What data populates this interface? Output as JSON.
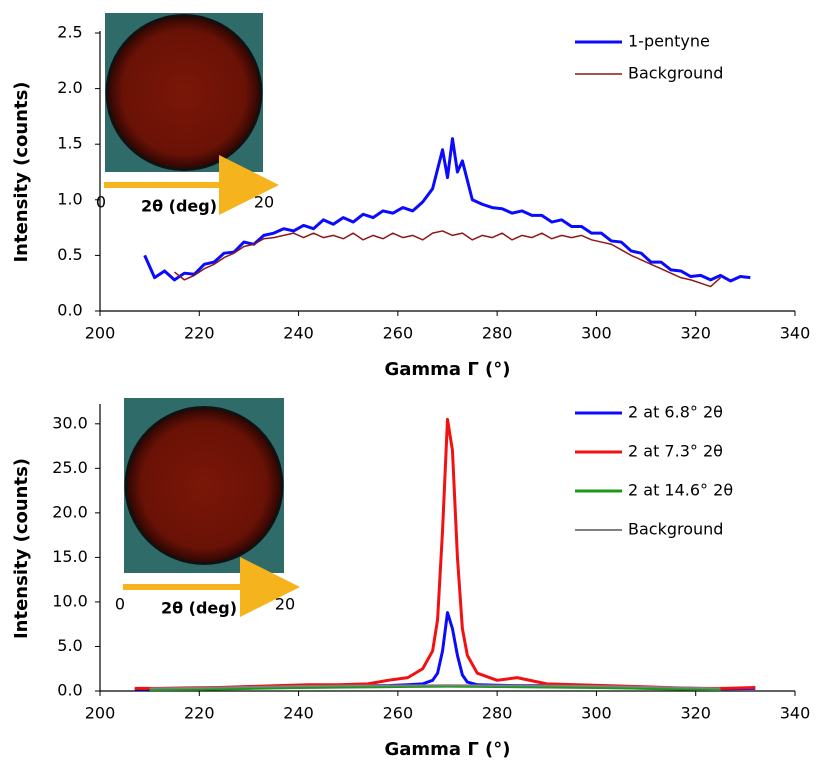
{
  "chart_data": [
    {
      "type": "line",
      "x_label": "Gamma Γ (°)",
      "y_label": "Intensity (counts)",
      "xlim": [
        200,
        340
      ],
      "xticks": [
        200,
        220,
        240,
        260,
        280,
        300,
        320,
        340
      ],
      "ylim": [
        0,
        2.5
      ],
      "yticks": [
        {
          "value": 0,
          "label": "0.0"
        },
        {
          "value": 0.5,
          "label": "0.5"
        },
        {
          "value": 1,
          "label": "1.0"
        },
        {
          "value": 1.5,
          "label": "1.5"
        },
        {
          "value": 2,
          "label": "2.0"
        },
        {
          "value": 2.5,
          "label": "2.5"
        }
      ],
      "legend": "upper right",
      "inset": {
        "start": "0",
        "label": "2θ (deg)",
        "end": "20"
      },
      "series": [
        {
          "name": "1-pentyne",
          "color": "#0a0aff",
          "width": 3,
          "x": [
            209,
            211,
            213,
            215,
            217,
            219,
            221,
            223,
            225,
            227,
            229,
            231,
            233,
            235,
            237,
            239,
            241,
            243,
            245,
            247,
            249,
            251,
            253,
            255,
            257,
            259,
            261,
            263,
            265,
            267,
            269,
            270,
            271,
            272,
            273,
            275,
            277,
            279,
            281,
            283,
            285,
            287,
            289,
            291,
            293,
            295,
            297,
            299,
            301,
            303,
            305,
            307,
            309,
            311,
            313,
            315,
            317,
            319,
            321,
            323,
            325,
            327,
            329,
            331
          ],
          "values": [
            0.5,
            0.3,
            0.36,
            0.28,
            0.34,
            0.33,
            0.42,
            0.44,
            0.52,
            0.53,
            0.62,
            0.6,
            0.68,
            0.7,
            0.74,
            0.72,
            0.77,
            0.74,
            0.82,
            0.78,
            0.84,
            0.8,
            0.87,
            0.84,
            0.9,
            0.88,
            0.93,
            0.9,
            0.98,
            1.1,
            1.45,
            1.2,
            1.55,
            1.25,
            1.35,
            1.0,
            0.96,
            0.93,
            0.92,
            0.88,
            0.9,
            0.86,
            0.86,
            0.8,
            0.82,
            0.76,
            0.76,
            0.7,
            0.7,
            0.63,
            0.62,
            0.54,
            0.52,
            0.44,
            0.44,
            0.37,
            0.36,
            0.31,
            0.32,
            0.28,
            0.32,
            0.27,
            0.31,
            0.3
          ]
        },
        {
          "name": "Background",
          "color": "#8b1a1a",
          "width": 1.5,
          "x": [
            215,
            217,
            219,
            221,
            223,
            225,
            227,
            229,
            231,
            233,
            235,
            237,
            239,
            241,
            243,
            245,
            247,
            249,
            251,
            253,
            255,
            257,
            259,
            261,
            263,
            265,
            267,
            269,
            271,
            273,
            275,
            277,
            279,
            281,
            283,
            285,
            287,
            289,
            291,
            293,
            295,
            297,
            299,
            301,
            303,
            305,
            307,
            309,
            311,
            313,
            315,
            317,
            319,
            321,
            323,
            325
          ],
          "values": [
            0.35,
            0.28,
            0.32,
            0.38,
            0.42,
            0.48,
            0.52,
            0.58,
            0.6,
            0.65,
            0.66,
            0.68,
            0.7,
            0.66,
            0.7,
            0.66,
            0.68,
            0.65,
            0.7,
            0.64,
            0.68,
            0.65,
            0.7,
            0.66,
            0.68,
            0.64,
            0.7,
            0.72,
            0.68,
            0.7,
            0.64,
            0.68,
            0.66,
            0.7,
            0.64,
            0.68,
            0.66,
            0.7,
            0.65,
            0.68,
            0.66,
            0.68,
            0.64,
            0.62,
            0.6,
            0.55,
            0.5,
            0.46,
            0.42,
            0.38,
            0.34,
            0.3,
            0.28,
            0.25,
            0.22,
            0.3
          ]
        }
      ]
    },
    {
      "type": "line",
      "x_label": "Gamma Γ (°)",
      "y_label": "Intensity (counts)",
      "xlim": [
        200,
        340
      ],
      "xticks": [
        200,
        220,
        240,
        260,
        280,
        300,
        320,
        340
      ],
      "ylim": [
        0,
        32
      ],
      "yticks": [
        {
          "value": 0,
          "label": "0.0"
        },
        {
          "value": 5,
          "label": "5.0"
        },
        {
          "value": 10,
          "label": "10.0"
        },
        {
          "value": 15,
          "label": "15.0"
        },
        {
          "value": 20,
          "label": "20.0"
        },
        {
          "value": 25,
          "label": "25.0"
        },
        {
          "value": 30,
          "label": "30.0"
        }
      ],
      "legend": "upper right",
      "inset": {
        "start": "0",
        "label": "2θ (deg)",
        "end": "20"
      },
      "series": [
        {
          "name": "2 at 6.8° 2θ",
          "color": "#0a0aff",
          "width": 3,
          "x": [
            207,
            212,
            218,
            224,
            230,
            236,
            242,
            248,
            254,
            258,
            262,
            265,
            267,
            268,
            269,
            270,
            271,
            272,
            273,
            274,
            276,
            280,
            284,
            290,
            296,
            302,
            308,
            314,
            320,
            326,
            332
          ],
          "values": [
            0.2,
            0.25,
            0.3,
            0.35,
            0.45,
            0.55,
            0.6,
            0.65,
            0.6,
            0.6,
            0.7,
            0.8,
            1.2,
            2,
            4.5,
            8.8,
            7,
            4,
            1.8,
            1,
            0.7,
            0.65,
            0.6,
            0.6,
            0.6,
            0.55,
            0.45,
            0.35,
            0.3,
            0.25,
            0.3
          ]
        },
        {
          "name": "2 at 7.3° 2θ",
          "color": "#f21010",
          "width": 3,
          "x": [
            207,
            212,
            218,
            224,
            230,
            236,
            242,
            248,
            254,
            258,
            262,
            265,
            267,
            268,
            269,
            270,
            271,
            272,
            273,
            274,
            276,
            280,
            284,
            290,
            296,
            302,
            308,
            314,
            320,
            326,
            332
          ],
          "values": [
            0.3,
            0.3,
            0.35,
            0.4,
            0.5,
            0.6,
            0.7,
            0.7,
            0.8,
            1.2,
            1.5,
            2.5,
            4.5,
            8,
            18,
            30.5,
            27,
            15,
            7,
            4,
            2,
            1.2,
            1.5,
            0.8,
            0.7,
            0.6,
            0.5,
            0.4,
            0.3,
            0.3,
            0.4
          ]
        },
        {
          "name": "2 at 14.6° 2θ",
          "color": "#1a9a1a",
          "width": 3,
          "x": [
            210,
            220,
            230,
            240,
            250,
            260,
            270,
            280,
            290,
            300,
            310,
            320,
            325
          ],
          "values": [
            0.15,
            0.2,
            0.3,
            0.4,
            0.45,
            0.5,
            0.55,
            0.5,
            0.45,
            0.4,
            0.3,
            0.2,
            0.15
          ]
        },
        {
          "name": "Background",
          "color": "#808080",
          "width": 2,
          "x": [
            210,
            220,
            230,
            240,
            250,
            260,
            270,
            280,
            290,
            300,
            310,
            320,
            325
          ],
          "values": [
            0.3,
            0.35,
            0.45,
            0.55,
            0.6,
            0.62,
            0.65,
            0.62,
            0.6,
            0.55,
            0.45,
            0.35,
            0.3
          ]
        }
      ]
    }
  ]
}
